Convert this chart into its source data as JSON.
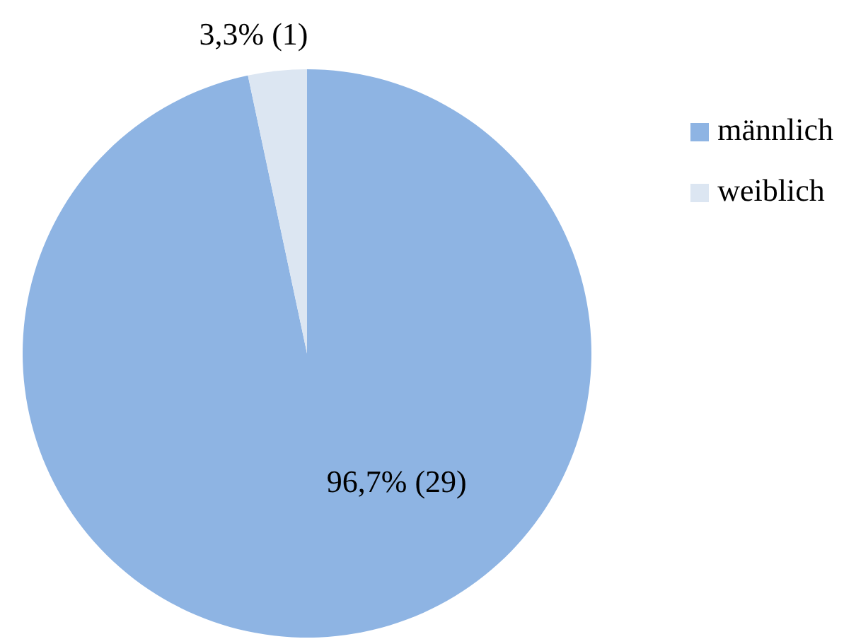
{
  "chart_data": {
    "type": "pie",
    "categories": [
      "männlich",
      "weiblich"
    ],
    "values": [
      29,
      1
    ],
    "colors": [
      "#8eb4e3",
      "#dce6f2"
    ],
    "value_labels": [
      "96,7% (29)",
      "3,3% (1)"
    ],
    "legend": "top right"
  }
}
